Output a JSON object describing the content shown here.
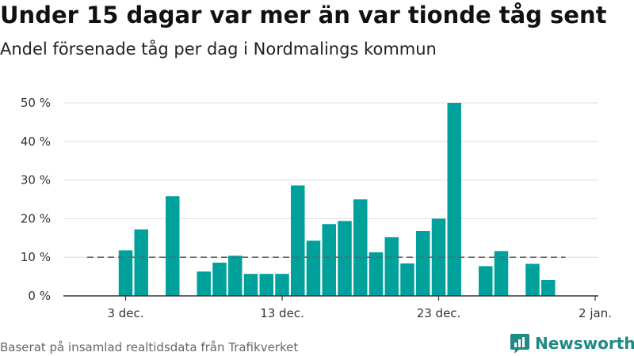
{
  "title": "Under 15 dagar var mer än var tionde tåg sent",
  "subtitle": "Andel försenade tåg per dag i Nordmalings kommun",
  "source": "Baserat på insamlad realtidsdata från Trafikverket",
  "logo": {
    "text": "Newsworthy",
    "icon": "chart-bubble-icon",
    "color": "#1f8a83"
  },
  "chart_data": {
    "type": "bar",
    "x": [
      "2019-12-01",
      "2019-12-02",
      "2019-12-03",
      "2019-12-04",
      "2019-12-05",
      "2019-12-06",
      "2019-12-07",
      "2019-12-08",
      "2019-12-09",
      "2019-12-10",
      "2019-12-11",
      "2019-12-12",
      "2019-12-13",
      "2019-12-14",
      "2019-12-15",
      "2019-12-16",
      "2019-12-17",
      "2019-12-18",
      "2019-12-19",
      "2019-12-20",
      "2019-12-21",
      "2019-12-22",
      "2019-12-23",
      "2019-12-24",
      "2019-12-25",
      "2019-12-26",
      "2019-12-27",
      "2019-12-28",
      "2019-12-29",
      "2019-12-30",
      "2019-12-31"
    ],
    "values": [
      0,
      0,
      11.8,
      17.2,
      0,
      25.8,
      0,
      6.3,
      8.6,
      10.4,
      5.7,
      5.7,
      5.7,
      28.6,
      14.3,
      18.6,
      19.4,
      25.0,
      11.3,
      15.2,
      8.4,
      16.8,
      20.0,
      50.0,
      0,
      7.7,
      11.6,
      0,
      8.3,
      4.1,
      0
    ],
    "reference_line": {
      "value": 10,
      "style": "dashed",
      "color": "#666666"
    },
    "x_ticks": [
      {
        "value": "2019-12-03",
        "label": "3 dec."
      },
      {
        "value": "2019-12-13",
        "label": "13 dec."
      },
      {
        "value": "2019-12-23",
        "label": "23 dec."
      },
      {
        "value": "2020-01-02",
        "label": "2 jan."
      }
    ],
    "y_ticks": [
      {
        "value": 0,
        "label": "0 %"
      },
      {
        "value": 10,
        "label": "10 %"
      },
      {
        "value": 20,
        "label": "20 %"
      },
      {
        "value": 30,
        "label": "30 %"
      },
      {
        "value": 40,
        "label": "40 %"
      },
      {
        "value": 50,
        "label": "50 %"
      }
    ],
    "ylim": [
      0,
      50
    ],
    "grid": true,
    "bar_color": "#00a19a"
  }
}
